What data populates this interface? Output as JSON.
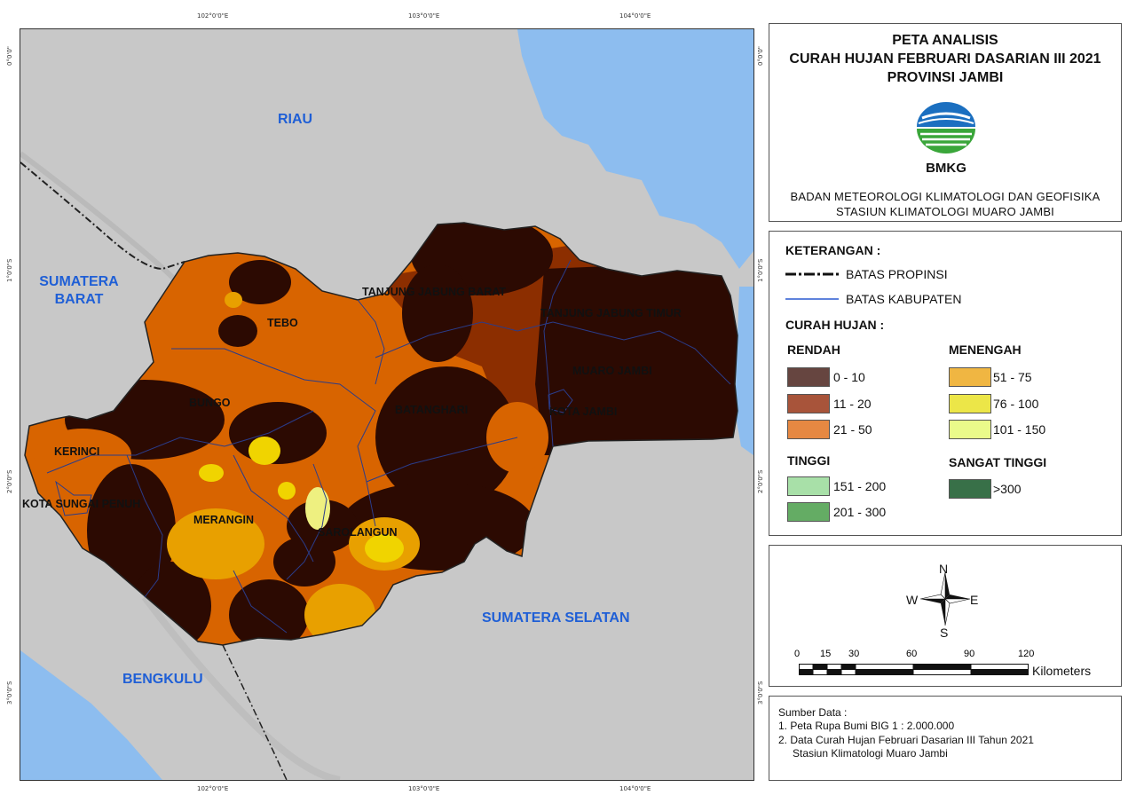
{
  "map": {
    "lon_ticks": [
      "102°0'0\"E",
      "103°0'0\"E",
      "104°0'0\"E"
    ],
    "lat_ticks": [
      "0°0'0\"",
      "1°0'0\"S",
      "2°0'0\"S",
      "3°0'0\"S"
    ],
    "neighbors": {
      "riau": "RIAU",
      "sumbar_1": "SUMATERA",
      "sumbar_2": "BARAT",
      "sumsel": "SUMATERA SELATAN",
      "bengkulu": "BENGKULU"
    },
    "regions": {
      "tebo": "TEBO",
      "tjb": "TANJUNG JABUNG BARAT",
      "tjt": "TANJUNG JABUNG TIMUR",
      "muaro_jambi": "MUARO JAMBI",
      "kota_jambi": "KOTA JAMBI",
      "bungo": "BUNGO",
      "batanghari": "BATANGHARI",
      "kerinci": "KERINCI",
      "sungai_penuh": "KOTA SUNGAI PENUH",
      "merangin": "MERANGIN",
      "sarolangun": "SAROLANGUN"
    },
    "colors": {
      "sea": "#8dbdef",
      "land": "#c8c8c8",
      "c_0_10": "#2c0a02",
      "c_11_20": "#8c2e00",
      "c_21_50": "#d86400",
      "c_51_75": "#e8a000",
      "c_76_100": "#f0d400",
      "c_101_150": "#eef080"
    }
  },
  "title": {
    "line1": "PETA ANALISIS",
    "line2": "CURAH HUJAN FEBRUARI DASARIAN III 2021",
    "line3": "PROVINSI JAMBI",
    "logo_text": "BMKG",
    "agency1": "BADAN METEOROLOGI KLIMATOLOGI DAN GEOFISIKA",
    "agency2": "STASIUN KLIMATOLOGI MUARO JAMBI"
  },
  "legend": {
    "heading": "KETERANGAN :",
    "batas_propinsi": "BATAS PROPINSI",
    "batas_kabupaten": "BATAS KABUPATEN",
    "curah_hujan": "CURAH HUJAN :",
    "groups": {
      "rendah": "RENDAH",
      "menengah": "MENENGAH",
      "tinggi": "TINGGI",
      "sangat_tinggi": "SANGAT TINGGI"
    },
    "classes": [
      {
        "label": "0 - 10",
        "color": "#664540"
      },
      {
        "label": "11 - 20",
        "color": "#a8543a"
      },
      {
        "label": "21 - 50",
        "color": "#e68842"
      },
      {
        "label": "51 - 75",
        "color": "#f0b642"
      },
      {
        "label": "76 - 100",
        "color": "#ece648"
      },
      {
        "label": "101 - 150",
        "color": "#eafa8a"
      },
      {
        "label": "151 - 200",
        "color": "#a8e0a8"
      },
      {
        "label": "201 - 300",
        "color": "#64ac64"
      },
      {
        "label": ">300",
        "color": "#387048"
      }
    ]
  },
  "compass": {
    "n": "N",
    "s": "S",
    "e": "E",
    "w": "W"
  },
  "scale": {
    "ticks": [
      "0",
      "15",
      "30",
      "60",
      "90",
      "120"
    ],
    "unit": "Kilometers"
  },
  "source": {
    "heading": "Sumber Data :",
    "item1": "1. Peta Rupa Bumi BIG 1 : 2.000.000",
    "item2": "2. Data Curah Hujan Februari Dasarian III Tahun 2021",
    "item3": "Stasiun Klimatologi Muaro Jambi"
  }
}
